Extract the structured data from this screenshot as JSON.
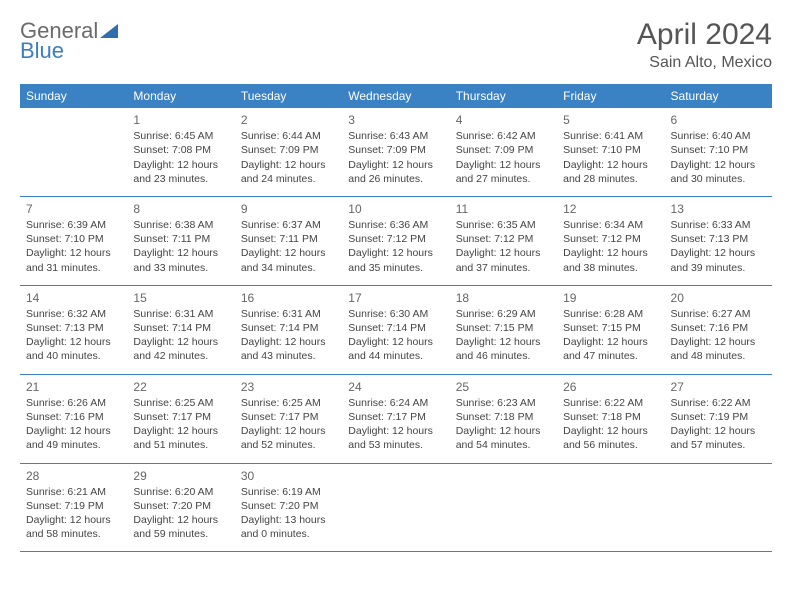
{
  "brand": {
    "part1": "General",
    "part2": "Blue",
    "accent_color": "#3b7fbf",
    "gray": "#6b6b6b"
  },
  "title": "April 2024",
  "location": "Sain Alto, Mexico",
  "colors": {
    "header_bg": "#3b82c4",
    "header_text": "#ffffff",
    "row_border": "#3b82c4",
    "text": "#444444",
    "daynum": "#666666",
    "page_bg": "#ffffff"
  },
  "weekdays": [
    "Sunday",
    "Monday",
    "Tuesday",
    "Wednesday",
    "Thursday",
    "Friday",
    "Saturday"
  ],
  "weeks": [
    [
      null,
      {
        "day": "1",
        "sunrise": "6:45 AM",
        "sunset": "7:08 PM",
        "daylight": "12 hours and 23 minutes."
      },
      {
        "day": "2",
        "sunrise": "6:44 AM",
        "sunset": "7:09 PM",
        "daylight": "12 hours and 24 minutes."
      },
      {
        "day": "3",
        "sunrise": "6:43 AM",
        "sunset": "7:09 PM",
        "daylight": "12 hours and 26 minutes."
      },
      {
        "day": "4",
        "sunrise": "6:42 AM",
        "sunset": "7:09 PM",
        "daylight": "12 hours and 27 minutes."
      },
      {
        "day": "5",
        "sunrise": "6:41 AM",
        "sunset": "7:10 PM",
        "daylight": "12 hours and 28 minutes."
      },
      {
        "day": "6",
        "sunrise": "6:40 AM",
        "sunset": "7:10 PM",
        "daylight": "12 hours and 30 minutes."
      }
    ],
    [
      {
        "day": "7",
        "sunrise": "6:39 AM",
        "sunset": "7:10 PM",
        "daylight": "12 hours and 31 minutes."
      },
      {
        "day": "8",
        "sunrise": "6:38 AM",
        "sunset": "7:11 PM",
        "daylight": "12 hours and 33 minutes."
      },
      {
        "day": "9",
        "sunrise": "6:37 AM",
        "sunset": "7:11 PM",
        "daylight": "12 hours and 34 minutes."
      },
      {
        "day": "10",
        "sunrise": "6:36 AM",
        "sunset": "7:12 PM",
        "daylight": "12 hours and 35 minutes."
      },
      {
        "day": "11",
        "sunrise": "6:35 AM",
        "sunset": "7:12 PM",
        "daylight": "12 hours and 37 minutes."
      },
      {
        "day": "12",
        "sunrise": "6:34 AM",
        "sunset": "7:12 PM",
        "daylight": "12 hours and 38 minutes."
      },
      {
        "day": "13",
        "sunrise": "6:33 AM",
        "sunset": "7:13 PM",
        "daylight": "12 hours and 39 minutes."
      }
    ],
    [
      {
        "day": "14",
        "sunrise": "6:32 AM",
        "sunset": "7:13 PM",
        "daylight": "12 hours and 40 minutes."
      },
      {
        "day": "15",
        "sunrise": "6:31 AM",
        "sunset": "7:14 PM",
        "daylight": "12 hours and 42 minutes."
      },
      {
        "day": "16",
        "sunrise": "6:31 AM",
        "sunset": "7:14 PM",
        "daylight": "12 hours and 43 minutes."
      },
      {
        "day": "17",
        "sunrise": "6:30 AM",
        "sunset": "7:14 PM",
        "daylight": "12 hours and 44 minutes."
      },
      {
        "day": "18",
        "sunrise": "6:29 AM",
        "sunset": "7:15 PM",
        "daylight": "12 hours and 46 minutes."
      },
      {
        "day": "19",
        "sunrise": "6:28 AM",
        "sunset": "7:15 PM",
        "daylight": "12 hours and 47 minutes."
      },
      {
        "day": "20",
        "sunrise": "6:27 AM",
        "sunset": "7:16 PM",
        "daylight": "12 hours and 48 minutes."
      }
    ],
    [
      {
        "day": "21",
        "sunrise": "6:26 AM",
        "sunset": "7:16 PM",
        "daylight": "12 hours and 49 minutes."
      },
      {
        "day": "22",
        "sunrise": "6:25 AM",
        "sunset": "7:17 PM",
        "daylight": "12 hours and 51 minutes."
      },
      {
        "day": "23",
        "sunrise": "6:25 AM",
        "sunset": "7:17 PM",
        "daylight": "12 hours and 52 minutes."
      },
      {
        "day": "24",
        "sunrise": "6:24 AM",
        "sunset": "7:17 PM",
        "daylight": "12 hours and 53 minutes."
      },
      {
        "day": "25",
        "sunrise": "6:23 AM",
        "sunset": "7:18 PM",
        "daylight": "12 hours and 54 minutes."
      },
      {
        "day": "26",
        "sunrise": "6:22 AM",
        "sunset": "7:18 PM",
        "daylight": "12 hours and 56 minutes."
      },
      {
        "day": "27",
        "sunrise": "6:22 AM",
        "sunset": "7:19 PM",
        "daylight": "12 hours and 57 minutes."
      }
    ],
    [
      {
        "day": "28",
        "sunrise": "6:21 AM",
        "sunset": "7:19 PM",
        "daylight": "12 hours and 58 minutes."
      },
      {
        "day": "29",
        "sunrise": "6:20 AM",
        "sunset": "7:20 PM",
        "daylight": "12 hours and 59 minutes."
      },
      {
        "day": "30",
        "sunrise": "6:19 AM",
        "sunset": "7:20 PM",
        "daylight": "13 hours and 0 minutes."
      },
      null,
      null,
      null,
      null
    ]
  ],
  "labels": {
    "sunrise": "Sunrise:",
    "sunset": "Sunset:",
    "daylight": "Daylight:"
  }
}
